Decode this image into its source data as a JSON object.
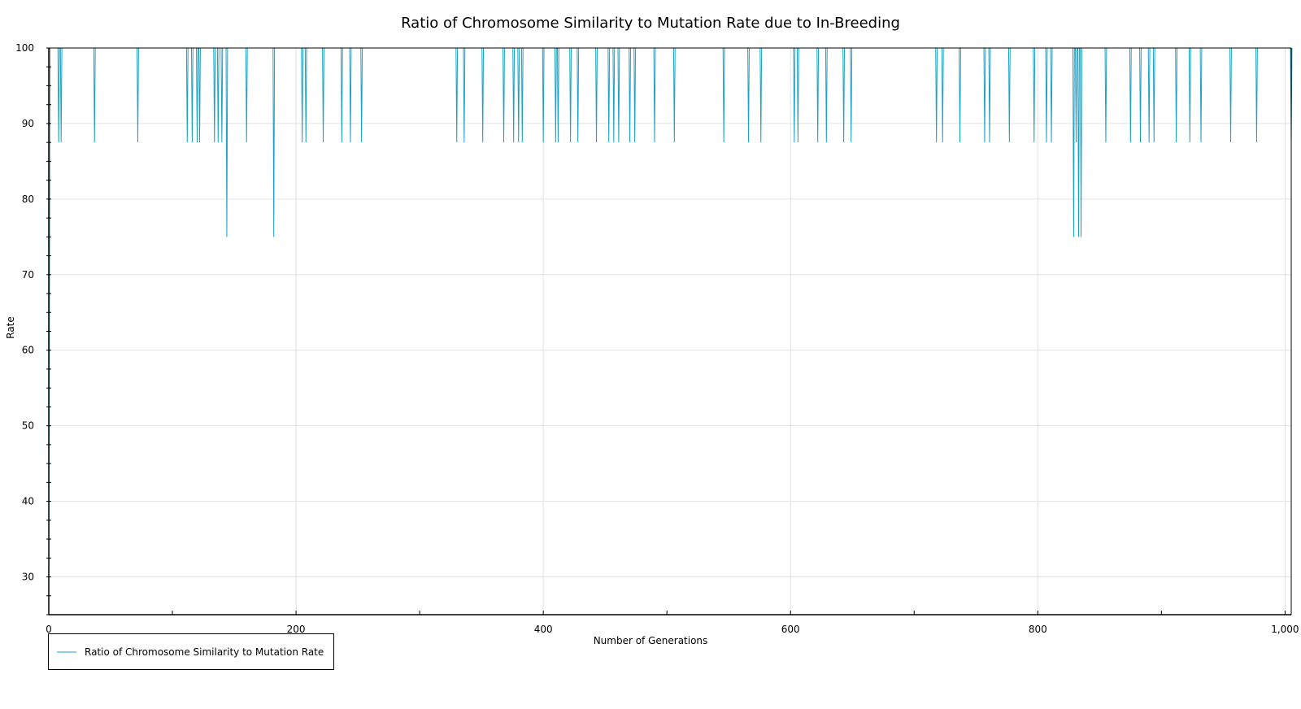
{
  "chart_data": {
    "type": "line",
    "title": "Ratio of Chromosome Similarity to Mutation Rate due to In-Breeding",
    "xlabel": "Number of Generations",
    "ylabel": "Rate",
    "xlim": [
      0,
      1005
    ],
    "ylim": [
      25,
      100
    ],
    "x_ticks": [
      0,
      200,
      400,
      600,
      800,
      1000
    ],
    "x_tick_labels": [
      "0",
      "200",
      "400",
      "600",
      "800",
      "1,000"
    ],
    "y_ticks": [
      30,
      40,
      50,
      60,
      70,
      80,
      90,
      100
    ],
    "y_tick_labels": [
      "30",
      "40",
      "50",
      "60",
      "70",
      "80",
      "90",
      "100"
    ],
    "grid": true,
    "legend_position": "bottom-left",
    "series": [
      {
        "name": "Ratio of Chromosome Similarity to Mutation Rate",
        "color": "#1ba1c4",
        "baseline": 100,
        "initial_points": [
          [
            0,
            25
          ],
          [
            1,
            100
          ]
        ],
        "dips": [
          [
            8,
            87.5
          ],
          [
            10,
            87.5
          ],
          [
            37,
            87.5
          ],
          [
            72,
            87.5
          ],
          [
            112,
            87.5
          ],
          [
            116,
            87.5
          ],
          [
            120,
            87.5
          ],
          [
            122,
            87.5
          ],
          [
            134,
            87.5
          ],
          [
            137,
            87.5
          ],
          [
            140,
            87.5
          ],
          [
            144,
            75
          ],
          [
            160,
            87.5
          ],
          [
            182,
            75
          ],
          [
            205,
            87.5
          ],
          [
            208,
            87.5
          ],
          [
            222,
            87.5
          ],
          [
            237,
            87.5
          ],
          [
            244,
            87.5
          ],
          [
            253,
            87.5
          ],
          [
            330,
            87.5
          ],
          [
            336,
            87.5
          ],
          [
            351,
            87.5
          ],
          [
            368,
            87.5
          ],
          [
            376,
            87.5
          ],
          [
            380,
            87.5
          ],
          [
            383,
            87.5
          ],
          [
            400,
            87.5
          ],
          [
            410,
            87.5
          ],
          [
            412,
            87.5
          ],
          [
            422,
            87.5
          ],
          [
            428,
            87.5
          ],
          [
            443,
            87.5
          ],
          [
            453,
            87.5
          ],
          [
            457,
            87.5
          ],
          [
            461,
            87.5
          ],
          [
            470,
            87.5
          ],
          [
            474,
            87.5
          ],
          [
            490,
            87.5
          ],
          [
            506,
            87.5
          ],
          [
            546,
            87.5
          ],
          [
            566,
            87.5
          ],
          [
            576,
            87.5
          ],
          [
            603,
            87.5
          ],
          [
            606,
            87.5
          ],
          [
            622,
            87.5
          ],
          [
            629,
            87.5
          ],
          [
            643,
            87.5
          ],
          [
            649,
            87.5
          ],
          [
            718,
            87.5
          ],
          [
            723,
            87.5
          ],
          [
            737,
            87.5
          ],
          [
            757,
            87.5
          ],
          [
            761,
            87.5
          ],
          [
            777,
            87.5
          ],
          [
            797,
            87.5
          ],
          [
            807,
            87.5
          ],
          [
            811,
            87.5
          ],
          [
            829,
            75
          ],
          [
            831,
            87.5
          ],
          [
            833,
            75
          ],
          [
            835,
            75
          ],
          [
            855,
            87.5
          ],
          [
            875,
            87.5
          ],
          [
            883,
            87.5
          ],
          [
            890,
            87.5
          ],
          [
            894,
            87.5
          ],
          [
            912,
            87.5
          ],
          [
            923,
            87.5
          ],
          [
            932,
            87.5
          ],
          [
            956,
            87.5
          ],
          [
            977,
            87.5
          ],
          [
            1005,
            87.5
          ]
        ]
      }
    ]
  }
}
